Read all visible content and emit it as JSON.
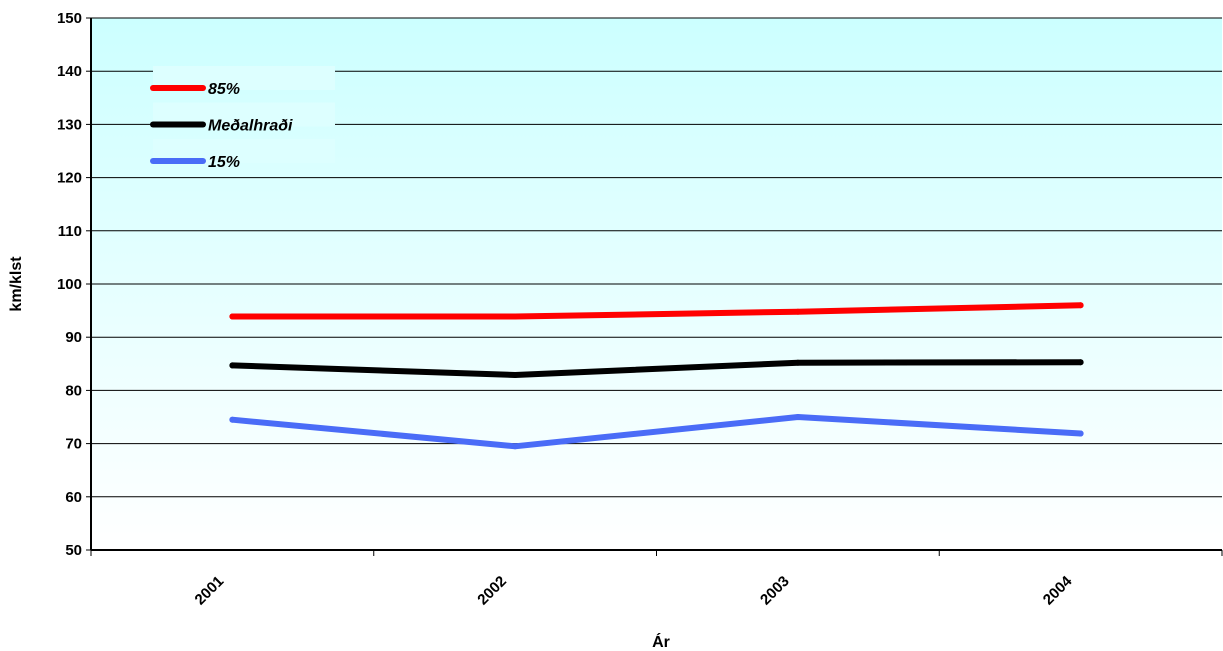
{
  "chart_data": {
    "type": "line",
    "title": "",
    "xlabel": "Ár",
    "ylabel": "km/klst",
    "categories": [
      "2001",
      "2002",
      "2003",
      "2004"
    ],
    "ylim": [
      50,
      150
    ],
    "yticks": [
      50,
      60,
      70,
      80,
      90,
      100,
      110,
      120,
      130,
      140,
      150
    ],
    "grid": true,
    "legend_position": "top-left",
    "background": {
      "top": "#ccffff",
      "bottom": "#ffffff"
    },
    "series": [
      {
        "name": "85%",
        "color": "#ff0000",
        "values": [
          93.9,
          93.9,
          94.8,
          96.0
        ]
      },
      {
        "name": "Meðalhraði",
        "color": "#000000",
        "values": [
          84.7,
          82.9,
          85.2,
          85.3
        ]
      },
      {
        "name": "15%",
        "color": "#4a6cf7",
        "values": [
          74.5,
          69.5,
          75.0,
          71.9
        ]
      }
    ]
  }
}
